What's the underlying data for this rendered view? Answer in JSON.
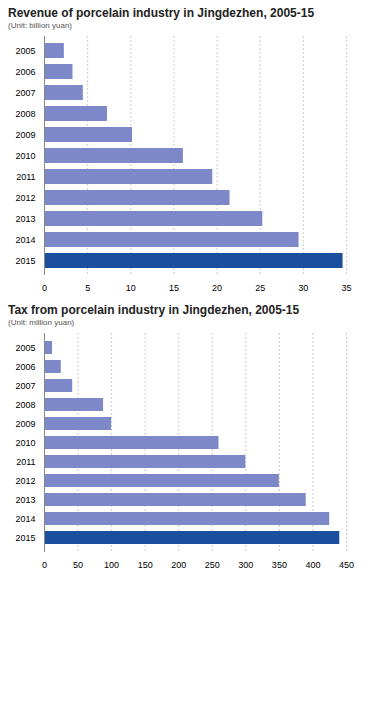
{
  "chart_data": [
    {
      "type": "bar",
      "orientation": "horizontal",
      "title": "Revenue of porcelain industry in Jingdezhen, 2005-15",
      "subtitle": "(Unit: billion yuan)",
      "categories": [
        "2005",
        "2006",
        "2007",
        "2008",
        "2009",
        "2010",
        "2011",
        "2012",
        "2013",
        "2014",
        "2015"
      ],
      "values": [
        2.3,
        3.3,
        4.5,
        7.3,
        10.2,
        16.1,
        19.5,
        21.5,
        25.3,
        29.5,
        34.6
      ],
      "colors": [
        "#7d88c8",
        "#7d88c8",
        "#7d88c8",
        "#7d88c8",
        "#7d88c8",
        "#7d88c8",
        "#7d88c8",
        "#7d88c8",
        "#7d88c8",
        "#7d88c8",
        "#1b4f9e"
      ],
      "xlim": [
        0,
        35
      ],
      "xticks": [
        0,
        5,
        10,
        15,
        20,
        25,
        30,
        35
      ],
      "grid": true
    },
    {
      "type": "bar",
      "orientation": "horizontal",
      "title": "Tax from porcelain industry in Jingdezhen, 2005-15",
      "subtitle": "(Unit: million yuan)",
      "categories": [
        "2005",
        "2006",
        "2007",
        "2008",
        "2009",
        "2010",
        "2011",
        "2012",
        "2013",
        "2014",
        "2015"
      ],
      "values": [
        12,
        25,
        42,
        88,
        100,
        260,
        300,
        350,
        390,
        425,
        440
      ],
      "colors": [
        "#7d88c8",
        "#7d88c8",
        "#7d88c8",
        "#7d88c8",
        "#7d88c8",
        "#7d88c8",
        "#7d88c8",
        "#7d88c8",
        "#7d88c8",
        "#7d88c8",
        "#1b4f9e"
      ],
      "xlim": [
        0,
        450
      ],
      "xticks": [
        0,
        50,
        100,
        150,
        200,
        250,
        300,
        350,
        400,
        450
      ],
      "grid": true
    }
  ]
}
